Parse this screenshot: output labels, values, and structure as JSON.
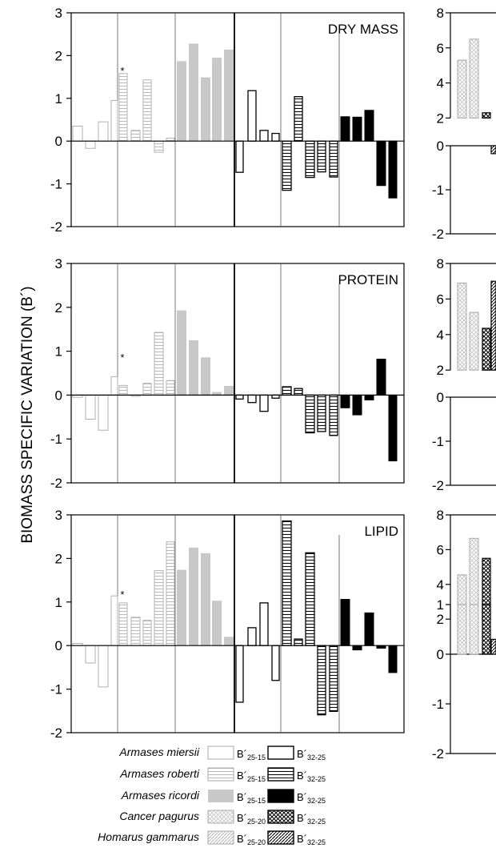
{
  "ylabel": "BIOMASS SPECIFIC VARIATION (B´)",
  "legend": {
    "species": [
      "Armases miersii",
      "Armases roberti",
      "Armases ricordi",
      "Cancer pagurus",
      "Homarus gammarus"
    ],
    "rows": [
      {
        "a_main": "B´",
        "a_sub": "25-15",
        "b_main": "B´",
        "b_sub": "32-25"
      },
      {
        "a_main": "B´",
        "a_sub": "25-15",
        "b_main": "B´",
        "b_sub": "32-25"
      },
      {
        "a_main": "B´",
        "a_sub": "25-15",
        "b_main": "B´",
        "b_sub": "32-25"
      },
      {
        "a_main": "B´",
        "a_sub": "25-20",
        "b_main": "B´",
        "b_sub": "32-25"
      },
      {
        "a_main": "B´",
        "a_sub": "25-20",
        "b_main": "B´",
        "b_sub": "32-25"
      }
    ]
  },
  "chart_data": [
    {
      "type": "bar",
      "title": "DRY MASS",
      "ylim": [
        -2,
        3
      ],
      "yticks": [
        "3",
        "2",
        "1",
        "0",
        "-1",
        "-2"
      ],
      "asterisk": "*",
      "series": [
        {
          "name": "Armases miersii B´25-15",
          "values": [
            0.35,
            -0.17,
            0.45,
            0.95
          ]
        },
        {
          "name": "Armases roberti B´25-15",
          "values": [
            1.58,
            0.25,
            1.43,
            -0.26,
            0.07
          ]
        },
        {
          "name": "Armases ricordi B´25-15",
          "values": [
            1.87,
            2.28,
            1.49,
            1.95,
            2.14
          ]
        },
        {
          "name": "Armases miersii B´32-25",
          "values": [
            -0.73,
            1.18,
            0.25,
            0.18
          ]
        },
        {
          "name": "Armases roberti B´32-25",
          "values": [
            -1.15,
            1.04,
            -0.85,
            -0.72,
            -0.84
          ]
        },
        {
          "name": "Armases ricordi B´32-25",
          "values": [
            0.57,
            0.56,
            0.72,
            -1.04,
            -1.33
          ]
        }
      ]
    },
    {
      "type": "bar",
      "title": "PROTEIN",
      "ylim": [
        -2,
        3
      ],
      "yticks": [
        "3",
        "2",
        "1",
        "0",
        "-1",
        "-2"
      ],
      "asterisk": "*",
      "series": [
        {
          "name": "Armases miersii B´25-15",
          "values": [
            -0.05,
            -0.55,
            -0.8,
            0.42
          ]
        },
        {
          "name": "Armases roberti B´25-15",
          "values": [
            0.22,
            -0.03,
            0.27,
            1.43,
            0.33
          ]
        },
        {
          "name": "Armases ricordi B´25-15",
          "values": [
            1.93,
            1.25,
            0.86,
            0.07,
            0.21
          ]
        },
        {
          "name": "Armases miersii B´32-25",
          "values": [
            -0.09,
            -0.17,
            -0.37,
            -0.07
          ]
        },
        {
          "name": "Armases roberti B´32-25",
          "values": [
            0.19,
            0.15,
            -0.86,
            -0.83,
            -0.92
          ]
        },
        {
          "name": "Armases ricordi B´32-25",
          "values": [
            -0.29,
            -0.45,
            -0.11,
            0.82,
            -1.5
          ]
        }
      ]
    },
    {
      "type": "bar",
      "title": "LIPID",
      "ylim": [
        -2,
        3
      ],
      "yticks": [
        "3",
        "2",
        "1",
        "0",
        "-1",
        "-2"
      ],
      "asterisk": "*",
      "series": [
        {
          "name": "Armases miersii B´25-15",
          "values": [
            0.05,
            -0.4,
            -0.95,
            1.14
          ]
        },
        {
          "name": "Armases roberti B´25-15",
          "values": [
            0.98,
            0.65,
            0.58,
            1.72,
            2.38
          ]
        },
        {
          "name": "Armases ricordi B´25-15",
          "values": [
            1.74,
            2.25,
            2.12,
            1.03,
            0.2
          ]
        },
        {
          "name": "Armases miersii B´32-25",
          "values": [
            -1.3,
            0.41,
            0.98,
            -0.8
          ]
        },
        {
          "name": "Armases roberti B´32-25",
          "values": [
            2.86,
            0.15,
            2.13,
            -1.59,
            -1.51
          ]
        },
        {
          "name": "Armases ricordi B´32-25",
          "values": [
            1.06,
            -0.1,
            0.75,
            -0.06,
            -0.62
          ]
        }
      ]
    },
    {
      "type": "bar",
      "title": "",
      "ylim": [
        -2,
        8
      ],
      "yticks_upper": [
        "8",
        "6",
        "4",
        "2"
      ],
      "yticks_lower": [
        "0",
        "-1",
        "-2"
      ],
      "series": [
        {
          "name": "Cancer pagurus B´25-20",
          "values": [
            5.3,
            6.5
          ]
        },
        {
          "name": "Cancer pagurus B´32-25",
          "values": [
            2.3
          ]
        },
        {
          "name": "Homarus gammarus B´32-25",
          "values": [
            -0.18
          ]
        }
      ]
    },
    {
      "type": "bar",
      "title": "",
      "ylim": [
        -2,
        8
      ],
      "yticks_upper": [
        "8",
        "6",
        "4",
        "2"
      ],
      "yticks_lower": [
        "0",
        "-1",
        "-2"
      ],
      "series": [
        {
          "name": "Cancer pagurus B´25-20",
          "values": [
            6.9,
            5.25
          ]
        },
        {
          "name": "Cancer pagurus B´32-25",
          "values": [
            4.35
          ]
        },
        {
          "name": "Homarus gammarus B´32-25",
          "values": [
            7.0
          ]
        }
      ]
    },
    {
      "type": "bar",
      "title": "",
      "ylim": [
        -2,
        8
      ],
      "yticks_upper": [
        "8",
        "6",
        "4",
        "2"
      ],
      "yticks_lower": [
        "1",
        "0",
        "-1",
        "-2"
      ],
      "series": [
        {
          "name": "Cancer pagurus B´25-20",
          "values": [
            4.55,
            6.65
          ]
        },
        {
          "name": "Cancer pagurus B´32-25",
          "values": [
            5.5
          ]
        },
        {
          "name": "Homarus gammarus B´32-25",
          "values": [
            0.3
          ]
        }
      ]
    }
  ]
}
